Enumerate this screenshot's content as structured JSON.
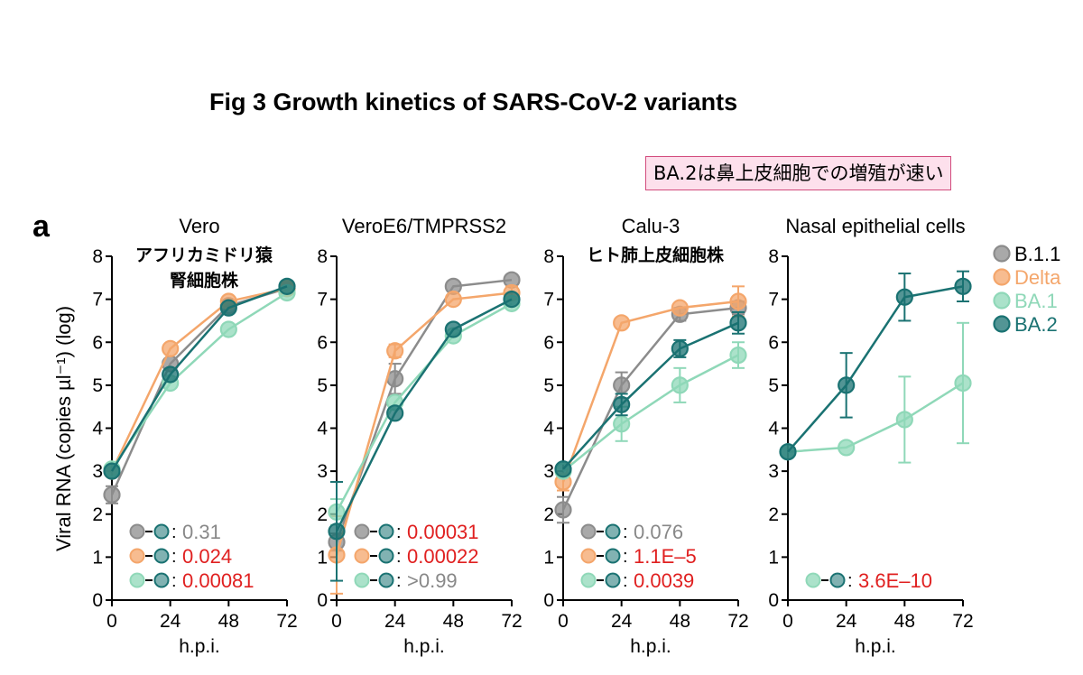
{
  "figure_title": "Fig 3 Growth kinetics of SARS-CoV-2 variants",
  "note": "BA.2は鼻上皮細胞での増殖が速い",
  "panel_letter": "a",
  "colors": {
    "B.1.1": "#8c8c8c",
    "Delta": "#f4a66b",
    "BA.1": "#8fd8b8",
    "BA.2": "#1a7272",
    "red": "#e02020",
    "gray": "#888888"
  },
  "chart_data": {
    "type": "line",
    "ylabel": "Viral RNA (copies µl⁻¹) (log)",
    "xlabel": "h.p.i.",
    "xticks": [
      0,
      24,
      48,
      72
    ],
    "yticks": [
      0,
      1,
      2,
      3,
      4,
      5,
      6,
      7,
      8
    ],
    "ylim": [
      0,
      8
    ],
    "xlim": [
      0,
      72
    ],
    "legend": [
      "B.1.1",
      "Delta",
      "BA.1",
      "BA.2"
    ],
    "panels": [
      {
        "title": "Vero",
        "subtitle": [
          "アフリカミドリ猿",
          "腎細胞株"
        ],
        "x": [
          0,
          24,
          48,
          72
        ],
        "series": [
          {
            "name": "B.1.1",
            "values": [
              2.45,
              5.5,
              6.85,
              7.25
            ],
            "err": [
              0.2,
              0.1,
              0.1,
              0.1
            ]
          },
          {
            "name": "Delta",
            "values": [
              3.0,
              5.85,
              6.95,
              7.25
            ],
            "err": [
              0.1,
              0.1,
              0.1,
              0.1
            ]
          },
          {
            "name": "BA.1",
            "values": [
              3.05,
              5.05,
              6.3,
              7.15
            ],
            "err": [
              0.1,
              0.1,
              0.1,
              0.1
            ]
          },
          {
            "name": "BA.2",
            "values": [
              3.0,
              5.25,
              6.8,
              7.3
            ],
            "err": [
              0.1,
              0.1,
              0.1,
              0.1
            ]
          }
        ],
        "stats": [
          {
            "left": "B.1.1",
            "value": "0.31",
            "color": "gray"
          },
          {
            "left": "Delta",
            "value": "0.024",
            "color": "red"
          },
          {
            "left": "BA.1",
            "value": "0.00081",
            "color": "red"
          }
        ]
      },
      {
        "title": "VeroE6/TMPRSS2",
        "subtitle": [],
        "x": [
          0,
          24,
          48,
          72
        ],
        "series": [
          {
            "name": "B.1.1",
            "values": [
              1.35,
              5.15,
              7.3,
              7.45
            ],
            "err": [
              0.2,
              0.35,
              0.1,
              0.1
            ]
          },
          {
            "name": "Delta",
            "values": [
              1.05,
              5.8,
              7.0,
              7.15
            ],
            "err": [
              0.9,
              0.15,
              0.1,
              0.15
            ]
          },
          {
            "name": "BA.1",
            "values": [
              2.05,
              4.6,
              6.15,
              6.9
            ],
            "err": [
              0.3,
              0.1,
              0.1,
              0.1
            ]
          },
          {
            "name": "BA.2",
            "values": [
              1.6,
              4.35,
              6.3,
              7.0
            ],
            "err": [
              1.15,
              0.1,
              0.1,
              0.1
            ]
          }
        ],
        "stats": [
          {
            "left": "B.1.1",
            "value": "0.00031",
            "color": "red"
          },
          {
            "left": "Delta",
            "value": "0.00022",
            "color": "red"
          },
          {
            "left": "BA.1",
            "value": ">0.99",
            "color": "gray"
          }
        ]
      },
      {
        "title": "Calu-3",
        "subtitle": [
          "ヒト肺上皮細胞株"
        ],
        "x": [
          0,
          24,
          48,
          72
        ],
        "series": [
          {
            "name": "B.1.1",
            "values": [
              2.1,
              5.0,
              6.65,
              6.8
            ],
            "err": [
              0.3,
              0.3,
              0.15,
              0.15
            ]
          },
          {
            "name": "Delta",
            "values": [
              2.75,
              6.45,
              6.8,
              6.95
            ],
            "err": [
              0.2,
              0.1,
              0.1,
              0.35
            ]
          },
          {
            "name": "BA.1",
            "values": [
              3.0,
              4.1,
              5.0,
              5.7
            ],
            "err": [
              0.1,
              0.4,
              0.4,
              0.3
            ]
          },
          {
            "name": "BA.2",
            "values": [
              3.05,
              4.55,
              5.85,
              6.45
            ],
            "err": [
              0.1,
              0.25,
              0.2,
              0.25
            ]
          }
        ],
        "stats": [
          {
            "left": "B.1.1",
            "value": "0.076",
            "color": "gray"
          },
          {
            "left": "Delta",
            "value": "1.1E–5",
            "color": "red"
          },
          {
            "left": "BA.1",
            "value": "0.0039",
            "color": "red"
          }
        ]
      },
      {
        "title": "Nasal epithelial cells",
        "subtitle": [],
        "x": [
          0,
          24,
          48,
          72
        ],
        "series": [
          {
            "name": "BA.1",
            "values": [
              3.45,
              3.55,
              4.2,
              5.05
            ],
            "err": [
              0.05,
              0.05,
              1.0,
              1.4
            ]
          },
          {
            "name": "BA.2",
            "values": [
              3.45,
              5.0,
              7.05,
              7.3
            ],
            "err": [
              0.05,
              0.75,
              0.55,
              0.35
            ]
          }
        ],
        "stats": [
          {
            "left": "BA.1",
            "value": "3.6E–10",
            "color": "red"
          }
        ]
      }
    ]
  }
}
